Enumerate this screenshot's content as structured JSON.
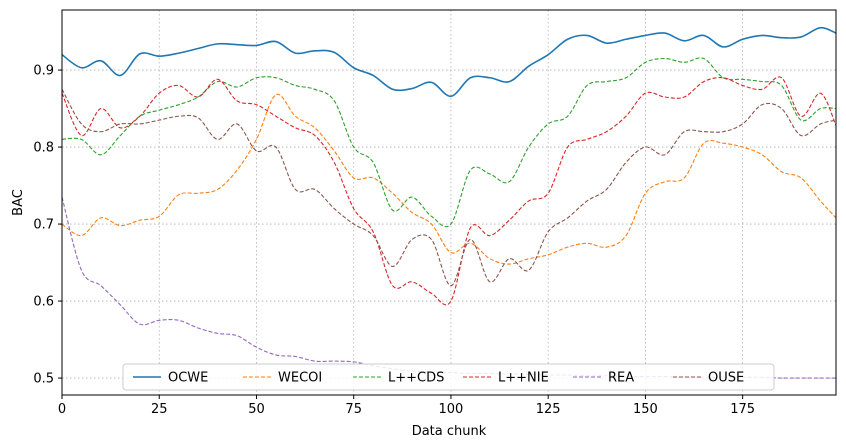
{
  "chart_data": {
    "type": "line",
    "title": "",
    "xlabel": "Data chunk",
    "ylabel": "BAC",
    "xlim": [
      0,
      199
    ],
    "ylim": [
      0.478,
      0.978
    ],
    "xticks": [
      0,
      25,
      50,
      75,
      100,
      125,
      150,
      175
    ],
    "yticks": [
      0.5,
      0.6,
      0.7,
      0.8,
      0.9
    ],
    "grid": true,
    "legend": {
      "position": "bottom-center",
      "columns": 6
    },
    "series": [
      {
        "name": "OCWE",
        "color": "#1f77b4",
        "dash": "solid",
        "x": [
          0,
          5,
          10,
          15,
          20,
          25,
          30,
          35,
          40,
          45,
          50,
          55,
          60,
          65,
          70,
          75,
          80,
          85,
          90,
          95,
          100,
          105,
          110,
          115,
          120,
          125,
          130,
          135,
          140,
          145,
          150,
          155,
          160,
          165,
          170,
          175,
          180,
          185,
          190,
          195,
          199
        ],
        "y": [
          0.92,
          0.903,
          0.912,
          0.893,
          0.921,
          0.918,
          0.922,
          0.928,
          0.934,
          0.933,
          0.932,
          0.937,
          0.922,
          0.925,
          0.923,
          0.903,
          0.893,
          0.875,
          0.876,
          0.884,
          0.866,
          0.89,
          0.89,
          0.885,
          0.905,
          0.92,
          0.94,
          0.945,
          0.935,
          0.94,
          0.945,
          0.948,
          0.938,
          0.945,
          0.93,
          0.94,
          0.945,
          0.942,
          0.943,
          0.955,
          0.948
        ]
      },
      {
        "name": "WECOI",
        "color": "#ff7f0e",
        "dash": "dashed",
        "x": [
          0,
          5,
          10,
          15,
          20,
          25,
          30,
          35,
          40,
          45,
          50,
          55,
          60,
          65,
          70,
          75,
          80,
          85,
          90,
          95,
          100,
          105,
          110,
          115,
          120,
          125,
          130,
          135,
          140,
          145,
          150,
          155,
          160,
          165,
          170,
          175,
          180,
          185,
          190,
          195,
          199
        ],
        "y": [
          0.7,
          0.685,
          0.708,
          0.698,
          0.705,
          0.71,
          0.738,
          0.74,
          0.745,
          0.77,
          0.81,
          0.868,
          0.84,
          0.825,
          0.795,
          0.76,
          0.76,
          0.74,
          0.715,
          0.7,
          0.663,
          0.675,
          0.655,
          0.648,
          0.655,
          0.66,
          0.67,
          0.675,
          0.67,
          0.685,
          0.74,
          0.755,
          0.76,
          0.805,
          0.805,
          0.8,
          0.79,
          0.768,
          0.76,
          0.73,
          0.708
        ]
      },
      {
        "name": "L++CDS",
        "color": "#2ca02c",
        "dash": "dashed",
        "x": [
          0,
          5,
          10,
          15,
          20,
          25,
          30,
          35,
          40,
          45,
          50,
          55,
          60,
          65,
          70,
          75,
          80,
          85,
          90,
          95,
          100,
          105,
          110,
          115,
          120,
          125,
          130,
          135,
          140,
          145,
          150,
          155,
          160,
          165,
          170,
          175,
          180,
          185,
          190,
          195,
          199
        ],
        "y": [
          0.81,
          0.81,
          0.79,
          0.815,
          0.84,
          0.848,
          0.855,
          0.865,
          0.885,
          0.878,
          0.89,
          0.89,
          0.88,
          0.875,
          0.86,
          0.8,
          0.78,
          0.718,
          0.735,
          0.71,
          0.7,
          0.77,
          0.765,
          0.755,
          0.8,
          0.83,
          0.84,
          0.88,
          0.885,
          0.89,
          0.91,
          0.915,
          0.91,
          0.915,
          0.89,
          0.888,
          0.885,
          0.88,
          0.835,
          0.85,
          0.85
        ]
      },
      {
        "name": "L++NIE",
        "color": "#d62728",
        "dash": "dashed",
        "x": [
          0,
          5,
          10,
          15,
          20,
          25,
          30,
          35,
          40,
          45,
          50,
          55,
          60,
          65,
          70,
          75,
          80,
          85,
          90,
          95,
          100,
          105,
          110,
          115,
          120,
          125,
          130,
          135,
          140,
          145,
          150,
          155,
          160,
          165,
          170,
          175,
          180,
          185,
          190,
          195,
          199
        ],
        "y": [
          0.87,
          0.815,
          0.85,
          0.825,
          0.84,
          0.87,
          0.88,
          0.865,
          0.888,
          0.86,
          0.855,
          0.84,
          0.825,
          0.815,
          0.78,
          0.72,
          0.69,
          0.62,
          0.625,
          0.61,
          0.6,
          0.695,
          0.685,
          0.705,
          0.73,
          0.74,
          0.8,
          0.81,
          0.82,
          0.84,
          0.87,
          0.865,
          0.865,
          0.885,
          0.89,
          0.88,
          0.875,
          0.89,
          0.84,
          0.87,
          0.828
        ]
      },
      {
        "name": "REA",
        "color": "#9467bd",
        "dash": "dashed",
        "x": [
          0,
          5,
          10,
          15,
          20,
          25,
          30,
          35,
          40,
          45,
          50,
          55,
          60,
          65,
          70,
          75,
          80,
          85,
          90,
          95,
          100,
          105,
          110,
          115,
          120,
          125,
          130,
          135,
          140,
          145,
          150,
          155,
          160,
          165,
          170,
          175,
          180,
          185,
          190,
          195,
          199
        ],
        "y": [
          0.735,
          0.64,
          0.62,
          0.595,
          0.57,
          0.575,
          0.575,
          0.565,
          0.558,
          0.555,
          0.54,
          0.53,
          0.528,
          0.522,
          0.522,
          0.521,
          0.516,
          0.512,
          0.509,
          0.508,
          0.507,
          0.506,
          0.506,
          0.505,
          0.505,
          0.504,
          0.504,
          0.503,
          0.503,
          0.502,
          0.502,
          0.502,
          0.501,
          0.501,
          0.501,
          0.501,
          0.501,
          0.5,
          0.5,
          0.5,
          0.5
        ]
      },
      {
        "name": "OUSE",
        "color": "#8c564b",
        "dash": "dashed",
        "x": [
          0,
          5,
          10,
          15,
          20,
          25,
          30,
          35,
          40,
          45,
          50,
          55,
          60,
          65,
          70,
          75,
          80,
          85,
          90,
          95,
          100,
          105,
          110,
          115,
          120,
          125,
          130,
          135,
          140,
          145,
          150,
          155,
          160,
          165,
          170,
          175,
          180,
          185,
          190,
          195,
          199
        ],
        "y": [
          0.875,
          0.83,
          0.82,
          0.83,
          0.83,
          0.835,
          0.84,
          0.838,
          0.81,
          0.83,
          0.795,
          0.8,
          0.745,
          0.745,
          0.72,
          0.7,
          0.685,
          0.645,
          0.68,
          0.68,
          0.62,
          0.68,
          0.625,
          0.655,
          0.64,
          0.69,
          0.708,
          0.73,
          0.745,
          0.78,
          0.8,
          0.79,
          0.82,
          0.82,
          0.82,
          0.83,
          0.855,
          0.85,
          0.815,
          0.83,
          0.835
        ]
      }
    ]
  }
}
